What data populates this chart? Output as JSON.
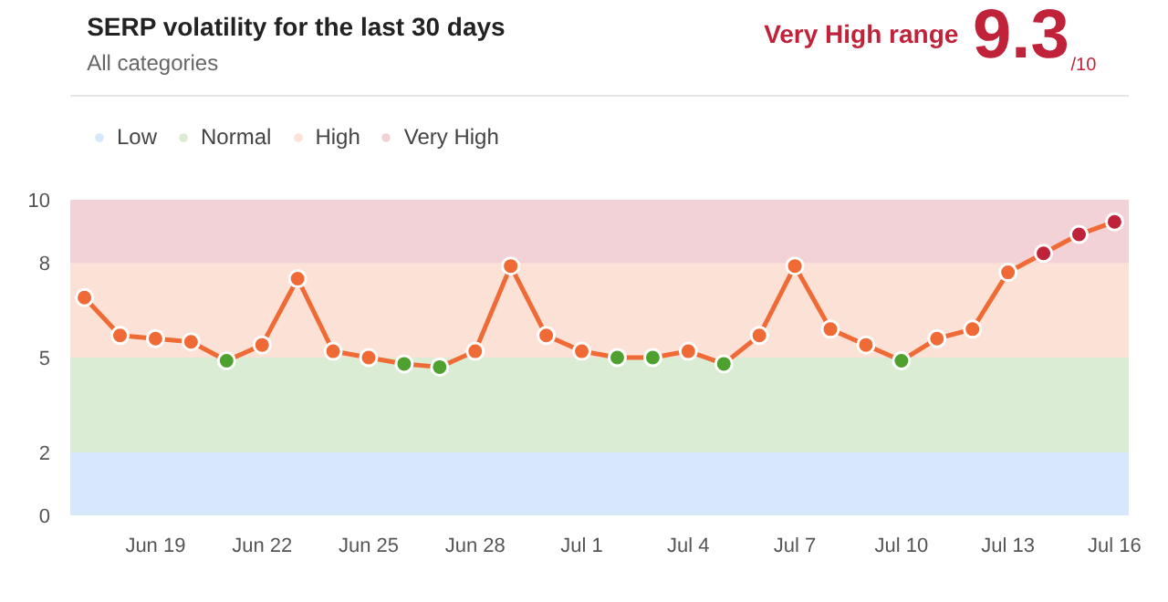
{
  "chart_data": {
    "type": "line",
    "title": "SERP volatility for the last 30 days",
    "subtitle": "All categories",
    "annotations": [
      "Very High range",
      "9.3",
      "/10"
    ],
    "categories": [
      null,
      null,
      "Jun 19",
      null,
      null,
      "Jun 22",
      null,
      null,
      "Jun 25",
      null,
      null,
      "Jun 28",
      null,
      null,
      "Jul 1",
      null,
      null,
      "Jul 4",
      null,
      null,
      "Jul 7",
      null,
      null,
      "Jul 10",
      null,
      null,
      "Jul 13",
      null,
      null,
      "Jul 16"
    ],
    "series": [
      {
        "color": "#f06a35",
        "marker": "none",
        "values": [
          6.9,
          5.7,
          5.6,
          5.5,
          4.9,
          5.4,
          7.5,
          5.2,
          5.0,
          4.8,
          4.7,
          5.2,
          7.9,
          5.7,
          5.2,
          5.0,
          5.0,
          5.2,
          4.8,
          5.7,
          7.9,
          5.9,
          5.4,
          4.9,
          5.6,
          5.9,
          7.7,
          8.3,
          8.9,
          9.3
        ]
      },
      {
        "type": "scatter",
        "color": "#4ea12f",
        "values": [
          null,
          null,
          null,
          null,
          4.9,
          null,
          null,
          null,
          null,
          4.8,
          4.7,
          null,
          null,
          null,
          null,
          5.0,
          5.0,
          null,
          4.8,
          null,
          null,
          null,
          null,
          4.9,
          null,
          null,
          null,
          null,
          null,
          null
        ]
      },
      {
        "type": "scatter",
        "color": "#f06a35",
        "values": [
          6.9,
          5.7,
          5.6,
          5.5,
          null,
          5.4,
          7.5,
          5.2,
          5.0,
          null,
          null,
          5.2,
          7.9,
          5.7,
          5.2,
          null,
          null,
          5.2,
          null,
          5.7,
          7.9,
          5.9,
          5.4,
          null,
          5.6,
          5.9,
          7.7,
          null,
          null,
          null
        ]
      },
      {
        "type": "scatter",
        "color": "#c0223a",
        "values": [
          null,
          null,
          null,
          null,
          null,
          null,
          null,
          null,
          null,
          null,
          null,
          null,
          null,
          null,
          null,
          null,
          null,
          null,
          null,
          null,
          null,
          null,
          null,
          null,
          null,
          null,
          null,
          8.3,
          8.9,
          9.3
        ]
      }
    ],
    "bands": [
      {
        "axis": "y",
        "from": 0,
        "to": 2,
        "label": "Low",
        "color": "#d7e8fc"
      },
      {
        "axis": "y",
        "from": 2,
        "to": 5,
        "label": "Normal",
        "color": "#dbecd5"
      },
      {
        "axis": "y",
        "from": 5,
        "to": 8,
        "label": "High",
        "color": "#fce1d6"
      },
      {
        "axis": "y",
        "from": 8,
        "to": 10,
        "label": "Very High",
        "color": "#f2d2d7"
      }
    ],
    "ylim": [
      0,
      10
    ],
    "yticks": [
      0,
      2,
      5,
      8,
      10
    ],
    "grid": "y",
    "legend": "top left",
    "marker": "circle",
    "line_style": "solid"
  }
}
